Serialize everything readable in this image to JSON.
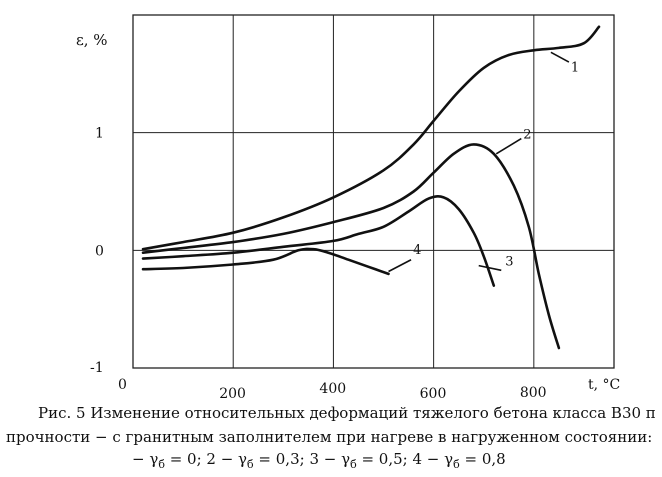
{
  "chart_data": {
    "type": "line",
    "ylabel": "ε, %",
    "xlabel": "t, °C",
    "xlim": [
      0,
      960
    ],
    "ylim": [
      -1,
      2
    ],
    "grid": true,
    "x_ticks": [
      {
        "value": 0,
        "label": "0"
      },
      {
        "value": 200,
        "label": "200"
      },
      {
        "value": 400,
        "label": "400"
      },
      {
        "value": 600,
        "label": "600"
      },
      {
        "value": 800,
        "label": "800"
      }
    ],
    "y_ticks": [
      {
        "value": 1,
        "label": "1"
      },
      {
        "value": 0,
        "label": "0"
      },
      {
        "value": -1,
        "label": "-1"
      }
    ],
    "series": [
      {
        "name": "1",
        "x": [
          20,
          100,
          200,
          300,
          400,
          500,
          560,
          600,
          650,
          700,
          750,
          800,
          850,
          900,
          930
        ],
        "y": [
          0.01,
          0.07,
          0.15,
          0.28,
          0.45,
          0.68,
          0.9,
          1.1,
          1.35,
          1.55,
          1.66,
          1.7,
          1.72,
          1.76,
          1.9
        ]
      },
      {
        "name": "2",
        "x": [
          20,
          100,
          200,
          300,
          400,
          500,
          560,
          600,
          640,
          680,
          720,
          760,
          790,
          810,
          830,
          850
        ],
        "y": [
          -0.02,
          0.02,
          0.07,
          0.14,
          0.24,
          0.36,
          0.5,
          0.66,
          0.82,
          0.9,
          0.82,
          0.55,
          0.2,
          -0.2,
          -0.55,
          -0.83
        ]
      },
      {
        "name": "3",
        "x": [
          20,
          100,
          200,
          300,
          400,
          450,
          500,
          550,
          590,
          620,
          650,
          680,
          700,
          720
        ],
        "y": [
          -0.07,
          -0.05,
          -0.02,
          0.03,
          0.08,
          0.14,
          0.2,
          0.33,
          0.44,
          0.45,
          0.35,
          0.15,
          -0.05,
          -0.3
        ]
      },
      {
        "name": "4",
        "x": [
          20,
          100,
          200,
          280,
          330,
          360,
          390,
          430,
          470,
          510
        ],
        "y": [
          -0.16,
          -0.15,
          -0.12,
          -0.08,
          0.0,
          0.01,
          -0.02,
          -0.08,
          -0.14,
          -0.2
        ]
      }
    ],
    "line_color": "#111111",
    "grid_color": "#222222"
  },
  "caption": {
    "line1": "Рис. 5   Изменение относительных деформаций тяжелого бетона класса В30 п",
    "line2": "прочности − с гранитным заполнителем при нагреве в нагруженном состоянии:",
    "line3_a": "− γ",
    "sub": "б",
    "line3_b": " = 0; 2 − γ",
    "line3_c": " = 0,3; 3 − γ",
    "line3_d": " = 0,5; 4 − γ",
    "line3_e": " = 0,8"
  }
}
